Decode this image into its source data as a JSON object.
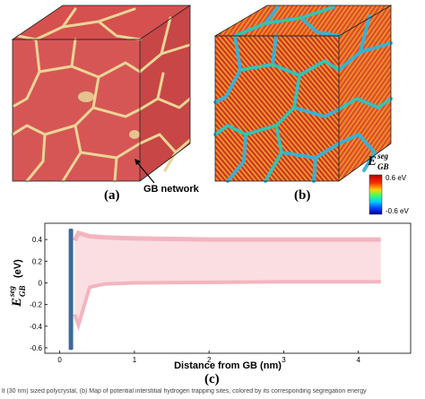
{
  "figure": {
    "panels": [
      {
        "label": "(a)",
        "annotation": "GB network"
      },
      {
        "label": "(b)",
        "colorbar": {
          "title_main": "E",
          "title_sup": "seg",
          "title_sub": "GB",
          "max_label": "0.6 eV",
          "min_label": "-0.6 eV"
        }
      },
      {
        "label": "(c)"
      }
    ],
    "colors": {
      "grain_red": "#d95555",
      "gb_tan": "#e9d596",
      "cube_edge": "#222222",
      "pink_series": "#f3b5bf",
      "blue_series": "#3d6a9c"
    },
    "caption": "lt (30 nm) sized polycrystal, (b) Map of potential interstitial hydrogen trapping sites, colored by its corresponding segregation energy"
  },
  "chart_data": {
    "type": "area",
    "xlabel": "Distance from GB (nm)",
    "ylabel_main": "E",
    "ylabel_sup": "seg",
    "ylabel_sub": "GB",
    "ylabel_unit": "(eV)",
    "xlim": [
      -0.2,
      4.7
    ],
    "ylim": [
      -0.65,
      0.55
    ],
    "xticks": [
      "0",
      "1",
      "2",
      "3",
      "4"
    ],
    "yticks": [
      "-0.6",
      "-0.4",
      "-0.2",
      "0",
      "0.2",
      "0.4"
    ],
    "series": [
      {
        "color": "#f3b5bf",
        "points": [
          [
            0.2,
            0.4
          ],
          [
            0.25,
            0.47
          ],
          [
            0.4,
            0.44
          ],
          [
            0.6,
            0.43
          ],
          [
            1.0,
            0.42
          ],
          [
            2.0,
            0.41
          ],
          [
            3.0,
            0.41
          ],
          [
            4.0,
            0.41
          ],
          [
            4.3,
            0.41
          ]
        ],
        "points_low": [
          [
            0.2,
            -0.3
          ],
          [
            0.25,
            -0.4
          ],
          [
            0.4,
            -0.05
          ],
          [
            0.6,
            -0.02
          ],
          [
            1.0,
            -0.01
          ],
          [
            2.0,
            -0.005
          ],
          [
            3.0,
            0.0
          ],
          [
            4.0,
            0.0
          ],
          [
            4.3,
            0.0
          ]
        ]
      },
      {
        "color": "#3d6a9c",
        "x_range": [
          0.12,
          0.18
        ],
        "y_range": [
          -0.62,
          0.5
        ]
      }
    ]
  }
}
